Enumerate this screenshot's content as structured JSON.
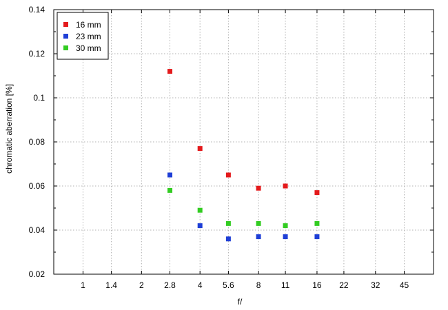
{
  "chart_data": {
    "type": "scatter",
    "xlabel": "f/",
    "ylabel": "chromatic  aberration [%]",
    "x_scale": "log2",
    "x_ticks": [
      "1",
      "1.4",
      "2",
      "2.8",
      "4",
      "5.6",
      "8",
      "11",
      "16",
      "22",
      "32",
      "45"
    ],
    "ylim": [
      0.02,
      0.14
    ],
    "y_ticks": [
      "0.02",
      "0.04",
      "0.06",
      "0.08",
      "0.1",
      "0.12",
      "0.14"
    ],
    "grid": true,
    "legend_position": "top-left",
    "series": [
      {
        "name": "16 mm",
        "color": "#e41a1c",
        "x": [
          "2.8",
          "4",
          "5.6",
          "8",
          "11",
          "16"
        ],
        "y": [
          0.112,
          0.077,
          0.065,
          0.059,
          0.06,
          0.057
        ]
      },
      {
        "name": "23 mm",
        "color": "#1f3fd6",
        "x": [
          "2.8",
          "4",
          "5.6",
          "8",
          "11",
          "16"
        ],
        "y": [
          0.065,
          0.042,
          0.036,
          0.037,
          0.037,
          0.037
        ]
      },
      {
        "name": "30 mm",
        "color": "#33cc22",
        "x": [
          "2.8",
          "4",
          "5.6",
          "8",
          "11",
          "16"
        ],
        "y": [
          0.058,
          0.049,
          0.043,
          0.043,
          0.042,
          0.043
        ]
      }
    ]
  }
}
